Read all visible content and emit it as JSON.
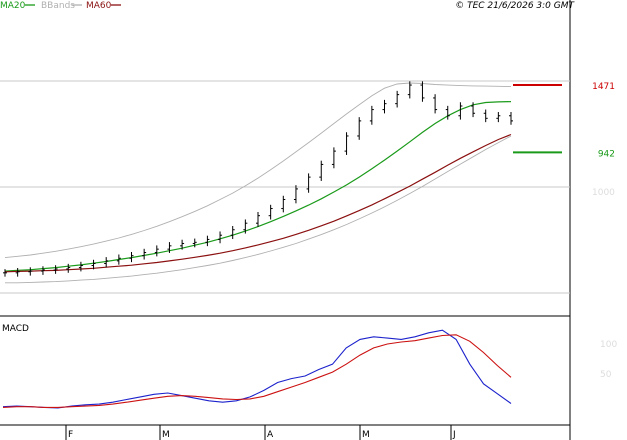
{
  "legend": {
    "items": [
      {
        "label": "MA20",
        "color": "#1a9a1a"
      },
      {
        "label": "BBands",
        "color": "#b0b0b0"
      },
      {
        "label": "MA60",
        "color": "#8b1010"
      }
    ]
  },
  "copyright": "© TEC 21/6/2026 3:0 GMT",
  "colors": {
    "candle": "#000000",
    "price_axis_bg": "#ffffff",
    "grid": "#c8c8c8",
    "macd_line": "#1c22cc",
    "signal_line": "#cc1111",
    "level_high": "#cc0000",
    "level_low": "#1a9a1a"
  },
  "chart_data": [
    {
      "type": "line",
      "title": "",
      "y_scale": "log",
      "y_ticks": [
        "1000"
      ],
      "levels": [
        {
          "value": 1471,
          "label": "1471",
          "color": "#cc0000"
        },
        {
          "value": 942,
          "label": "942",
          "color": "#1a9a1a"
        }
      ],
      "x_ticks": [
        "F",
        "M",
        "A",
        "M",
        "J"
      ],
      "series": [
        {
          "name": "MA20",
          "values": [
            430,
            432,
            434,
            437,
            440,
            444,
            448,
            453,
            458,
            464,
            470,
            477,
            484,
            492,
            500,
            510,
            520,
            532,
            545,
            560,
            577,
            596,
            617,
            640,
            665,
            693,
            725,
            760,
            800,
            845,
            895,
            950,
            1010,
            1075,
            1140,
            1200,
            1250,
            1290,
            1310,
            1315,
            1318
          ]
        },
        {
          "name": "MA60",
          "values": [
            428,
            429,
            430,
            431,
            432,
            434,
            436,
            438,
            441,
            444,
            447,
            451,
            455,
            460,
            465,
            471,
            477,
            484,
            492,
            501,
            511,
            522,
            534,
            548,
            563,
            580,
            598,
            619,
            641,
            666,
            693,
            722,
            754,
            789,
            826,
            866,
            906,
            946,
            986,
            1026,
            1060
          ]
        },
        {
          "name": "BBands",
          "values": [
            470,
            474,
            478,
            484,
            490,
            497,
            505,
            514,
            524,
            535,
            548,
            562,
            578,
            596,
            616,
            638,
            662,
            690,
            720,
            755,
            795,
            840,
            890,
            945,
            1005,
            1070,
            1140,
            1215,
            1290,
            1370,
            1440,
            1480,
            1490,
            1485,
            1475,
            1470,
            1465,
            1462,
            1460,
            1458,
            1455
          ]
        },
        {
          "name": "BBands",
          "values": [
            398,
            398,
            399,
            400,
            401,
            403,
            405,
            407,
            410,
            413,
            416,
            420,
            424,
            429,
            434,
            440,
            446,
            453,
            461,
            470,
            480,
            491,
            503,
            516,
            531,
            547,
            565,
            585,
            607,
            631,
            657,
            686,
            718,
            752,
            790,
            830,
            872,
            915,
            960,
            1005,
            1050
          ]
        },
        {
          "name": "Price",
          "values": [
            425,
            428,
            430,
            433,
            436,
            440,
            446,
            452,
            460,
            468,
            476,
            486,
            497,
            508,
            516,
            520,
            530,
            545,
            565,
            590,
            620,
            650,
            690,
            740,
            800,
            870,
            950,
            1050,
            1160,
            1250,
            1300,
            1380,
            1470,
            1350,
            1250,
            1200,
            1280,
            1220,
            1180,
            1200,
            1160
          ]
        }
      ]
    },
    {
      "type": "line",
      "title": "MACD",
      "y_ticks": [
        "100",
        "50"
      ],
      "series": [
        {
          "name": "MACD",
          "values": [
            5,
            6,
            5,
            4,
            3,
            6,
            8,
            9,
            12,
            16,
            20,
            24,
            26,
            22,
            18,
            14,
            12,
            14,
            20,
            30,
            42,
            48,
            52,
            62,
            70,
            95,
            108,
            112,
            110,
            108,
            112,
            118,
            122,
            108,
            70,
            40,
            25,
            10
          ]
        },
        {
          "name": "Signal",
          "values": [
            4,
            5,
            5,
            4,
            4,
            5,
            6,
            7,
            9,
            12,
            15,
            18,
            21,
            22,
            21,
            19,
            17,
            16,
            17,
            21,
            28,
            35,
            42,
            50,
            58,
            70,
            84,
            95,
            101,
            104,
            106,
            110,
            114,
            115,
            105,
            88,
            68,
            50
          ]
        }
      ]
    }
  ]
}
